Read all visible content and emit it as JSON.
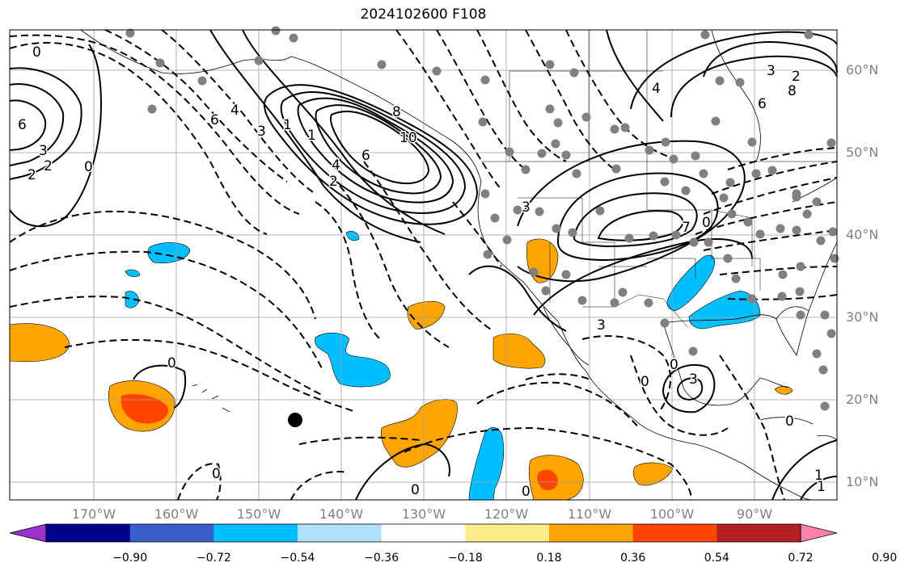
{
  "title": "2024102600 F108",
  "map": {
    "lat_labels": [
      "60°N",
      "50°N",
      "40°N",
      "30°N",
      "20°N",
      "10°N"
    ],
    "lon_labels": [
      "170°W",
      "160°W",
      "150°W",
      "140°W",
      "130°W",
      "120°W",
      "110°W",
      "100°W",
      "90°W"
    ],
    "contour_labels": [
      "0",
      "6",
      "3",
      "2",
      "2",
      "0",
      "6",
      "4",
      "3",
      "1",
      "1",
      "6",
      "10",
      "8",
      "4",
      "2",
      "3",
      "2",
      "8",
      "6",
      "4",
      "3",
      "7",
      "0",
      "3",
      "0",
      "3",
      "0",
      "0",
      "1",
      "0",
      "0",
      "0",
      "0",
      "1"
    ],
    "line_color": "#000000",
    "grid_color": "#9e9e9e",
    "station_color": "#808080"
  },
  "colorbar": {
    "ticks": [
      "−0.90",
      "−0.72",
      "−0.54",
      "−0.36",
      "−0.18",
      "0.18",
      "0.36",
      "0.54",
      "0.72",
      "0.90"
    ],
    "colors": [
      "#9a32cd",
      "#00008b",
      "#3a5fcd",
      "#00bfff",
      "#b0e2ff",
      "#ffffff",
      "#ffec8b",
      "#ffa500",
      "#ff4500",
      "#b22222",
      "#ff82ab"
    ]
  }
}
